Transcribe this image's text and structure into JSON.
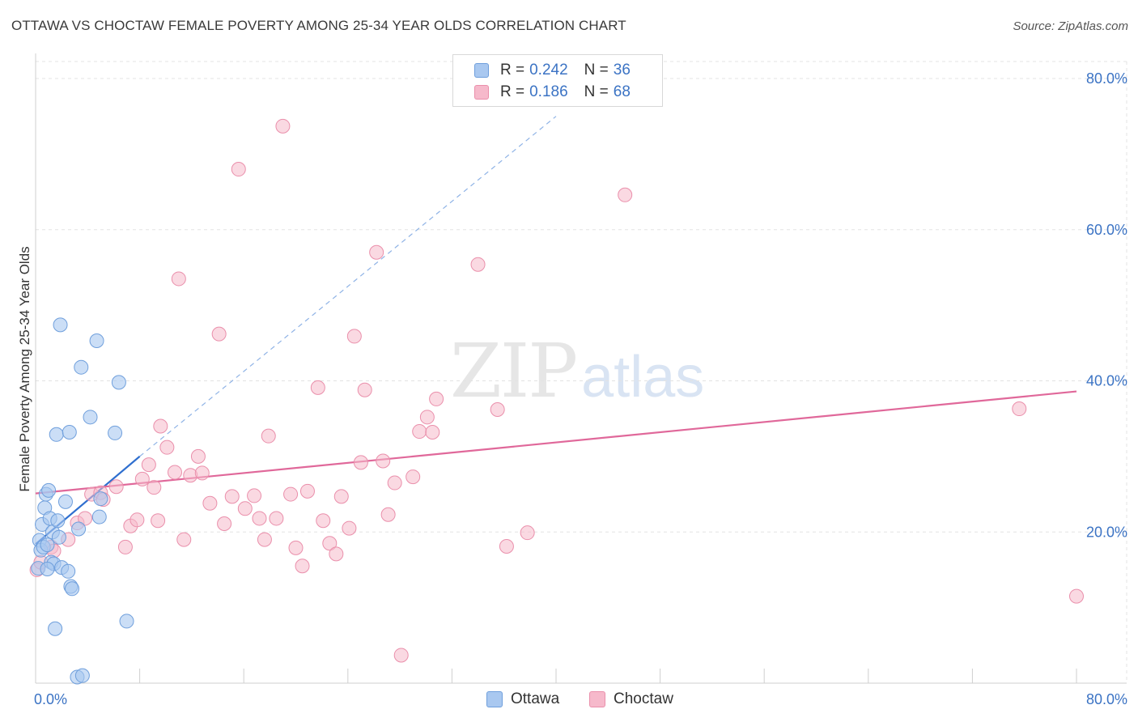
{
  "title": "OTTAWA VS CHOCTAW FEMALE POVERTY AMONG 25-34 YEAR OLDS CORRELATION CHART",
  "source": "Source: ZipAtlas.com",
  "watermark": {
    "zip": "ZIP",
    "atlas": "atlas"
  },
  "legend": {
    "rows": [
      {
        "r_label": "R =",
        "r_value": "0.242",
        "n_label": "N =",
        "n_value": "36"
      },
      {
        "r_label": "R =",
        "r_value": "0.186",
        "n_label": "N =",
        "n_value": "68"
      }
    ]
  },
  "colors": {
    "ottawa_fill": "#a9c8f0",
    "ottawa_stroke": "#6f9fdc",
    "ottawa_line": "#2f6fcf",
    "choctaw_fill": "#f6b9cb",
    "choctaw_stroke": "#ea8fab",
    "choctaw_line": "#e0689a",
    "tick_text": "#3b73c4",
    "grid": "#e3e3e3"
  },
  "chart_data": {
    "type": "scatter",
    "title": "OTTAWA VS CHOCTAW FEMALE POVERTY AMONG 25-34 YEAR OLDS CORRELATION CHART",
    "xlabel": "",
    "ylabel": "Female Poverty Among 25-34 Year Olds",
    "xlim": [
      0,
      80
    ],
    "ylim": [
      0,
      82
    ],
    "x_tick_labels": [
      "0.0%",
      "80.0%"
    ],
    "y_ticks": [
      {
        "value": 20,
        "label": "20.0%"
      },
      {
        "value": 40,
        "label": "40.0%"
      },
      {
        "value": 60,
        "label": "60.0%"
      },
      {
        "value": 80,
        "label": "80.0%"
      }
    ],
    "grid": true,
    "legend_position": "top-center",
    "series": [
      {
        "name": "Ottawa",
        "r": 0.242,
        "n": 36,
        "trend": {
          "x": [
            0,
            8
          ],
          "y": [
            18.4,
            30.0
          ],
          "extended_to": [
            40,
            75
          ]
        },
        "points": [
          [
            0.2,
            15.2
          ],
          [
            0.3,
            18.9
          ],
          [
            0.4,
            17.6
          ],
          [
            0.5,
            21.0
          ],
          [
            0.6,
            18.0
          ],
          [
            0.7,
            23.2
          ],
          [
            0.8,
            25.0
          ],
          [
            0.9,
            18.3
          ],
          [
            1.0,
            25.5
          ],
          [
            1.1,
            21.8
          ],
          [
            1.2,
            16.0
          ],
          [
            1.3,
            20.0
          ],
          [
            1.4,
            15.8
          ],
          [
            1.5,
            7.2
          ],
          [
            1.6,
            32.9
          ],
          [
            1.7,
            21.5
          ],
          [
            1.9,
            47.4
          ],
          [
            2.0,
            15.3
          ],
          [
            2.3,
            24.0
          ],
          [
            2.5,
            14.8
          ],
          [
            2.6,
            33.2
          ],
          [
            2.7,
            12.8
          ],
          [
            2.8,
            12.5
          ],
          [
            3.2,
            0.8
          ],
          [
            3.3,
            20.4
          ],
          [
            3.5,
            41.8
          ],
          [
            4.2,
            35.2
          ],
          [
            4.7,
            45.3
          ],
          [
            4.9,
            22.0
          ],
          [
            5.0,
            24.4
          ],
          [
            6.1,
            33.1
          ],
          [
            6.4,
            39.8
          ],
          [
            7.0,
            8.2
          ],
          [
            3.6,
            1.0
          ],
          [
            0.9,
            15.1
          ],
          [
            1.8,
            19.3
          ]
        ]
      },
      {
        "name": "Choctaw",
        "r": 0.186,
        "n": 68,
        "trend": {
          "x": [
            0,
            80
          ],
          "y": [
            25.1,
            38.6
          ]
        },
        "points": [
          [
            0.1,
            15.0
          ],
          [
            0.4,
            16.0
          ],
          [
            1.2,
            18.0
          ],
          [
            1.4,
            17.5
          ],
          [
            2.5,
            19.0
          ],
          [
            3.2,
            21.2
          ],
          [
            3.8,
            21.8
          ],
          [
            4.3,
            25.0
          ],
          [
            5.0,
            25.2
          ],
          [
            5.2,
            24.3
          ],
          [
            6.2,
            26.0
          ],
          [
            6.9,
            18.0
          ],
          [
            7.3,
            20.8
          ],
          [
            7.8,
            21.6
          ],
          [
            8.2,
            27.0
          ],
          [
            8.7,
            28.9
          ],
          [
            9.4,
            21.5
          ],
          [
            9.6,
            34.0
          ],
          [
            10.1,
            31.2
          ],
          [
            10.7,
            27.9
          ],
          [
            11.0,
            53.5
          ],
          [
            11.4,
            19.0
          ],
          [
            11.9,
            27.5
          ],
          [
            12.5,
            30.0
          ],
          [
            12.8,
            27.8
          ],
          [
            13.4,
            23.8
          ],
          [
            14.1,
            46.2
          ],
          [
            14.5,
            21.1
          ],
          [
            15.1,
            24.7
          ],
          [
            15.6,
            68.0
          ],
          [
            16.1,
            23.1
          ],
          [
            16.8,
            24.8
          ],
          [
            17.2,
            21.8
          ],
          [
            17.6,
            19.0
          ],
          [
            17.9,
            32.7
          ],
          [
            18.5,
            21.8
          ],
          [
            19.0,
            73.7
          ],
          [
            19.6,
            25.0
          ],
          [
            20.0,
            17.9
          ],
          [
            20.5,
            15.5
          ],
          [
            20.9,
            25.4
          ],
          [
            21.7,
            39.1
          ],
          [
            22.1,
            21.5
          ],
          [
            22.6,
            18.5
          ],
          [
            23.1,
            17.1
          ],
          [
            23.5,
            24.7
          ],
          [
            24.1,
            20.5
          ],
          [
            24.5,
            45.9
          ],
          [
            25.3,
            38.8
          ],
          [
            26.2,
            57.0
          ],
          [
            26.7,
            29.4
          ],
          [
            27.1,
            22.3
          ],
          [
            27.6,
            26.5
          ],
          [
            28.1,
            3.7
          ],
          [
            29.0,
            27.3
          ],
          [
            29.5,
            33.3
          ],
          [
            30.1,
            35.2
          ],
          [
            30.5,
            33.2
          ],
          [
            30.8,
            37.6
          ],
          [
            34.0,
            55.4
          ],
          [
            35.5,
            36.2
          ],
          [
            36.2,
            18.1
          ],
          [
            37.8,
            19.9
          ],
          [
            45.3,
            64.6
          ],
          [
            75.6,
            36.3
          ],
          [
            80.0,
            11.5
          ],
          [
            25.0,
            29.2
          ],
          [
            9.1,
            25.9
          ]
        ]
      }
    ]
  },
  "bottom_legend": [
    {
      "label": "Ottawa"
    },
    {
      "label": "Choctaw"
    }
  ]
}
